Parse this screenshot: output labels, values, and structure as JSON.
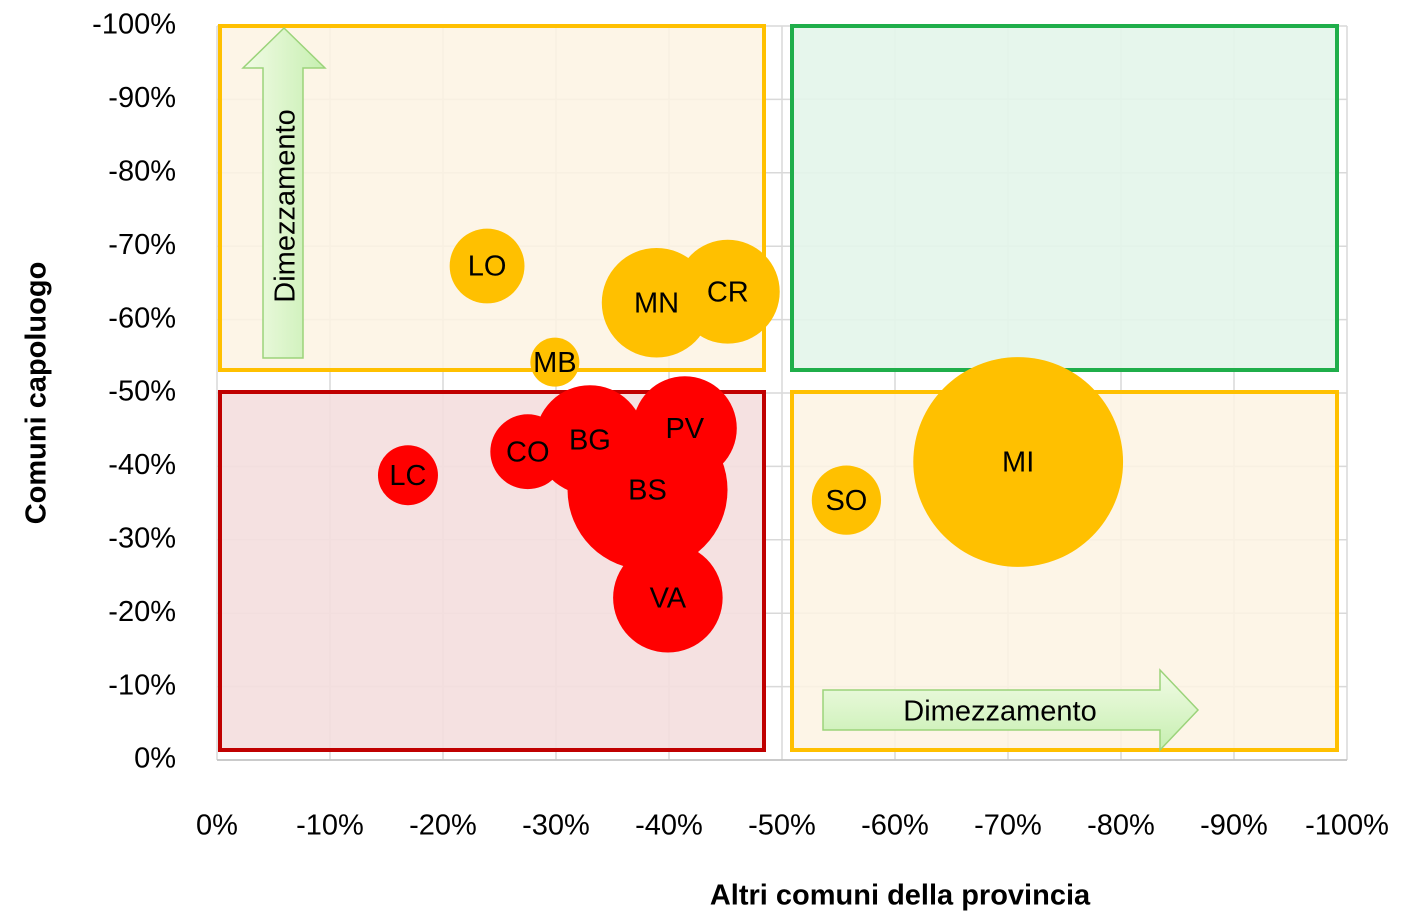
{
  "chart_data": {
    "type": "bubble",
    "xlabel": "Altri comuni della provincia",
    "ylabel": "Comuni capoluogo",
    "xlim": [
      0,
      -100
    ],
    "ylim": [
      0,
      -100
    ],
    "xticks": [
      {
        "value": 0,
        "label": "0%"
      },
      {
        "value": -10,
        "label": "-10%"
      },
      {
        "value": -20,
        "label": "-20%"
      },
      {
        "value": -30,
        "label": "-30%"
      },
      {
        "value": -40,
        "label": "-40%"
      },
      {
        "value": -50,
        "label": "-50%"
      },
      {
        "value": -60,
        "label": "-60%"
      },
      {
        "value": -70,
        "label": "-70%"
      },
      {
        "value": -80,
        "label": "-80%"
      },
      {
        "value": -90,
        "label": "-90%"
      },
      {
        "value": -100,
        "label": "-100%"
      }
    ],
    "yticks": [
      {
        "value": 0,
        "label": "0%"
      },
      {
        "value": -10,
        "label": "-10%"
      },
      {
        "value": -20,
        "label": "-20%"
      },
      {
        "value": -30,
        "label": "-30%"
      },
      {
        "value": -40,
        "label": "-40%"
      },
      {
        "value": -50,
        "label": "-50%"
      },
      {
        "value": -60,
        "label": "-60%"
      },
      {
        "value": -70,
        "label": "-70%"
      },
      {
        "value": -80,
        "label": "-80%"
      },
      {
        "value": -90,
        "label": "-90%"
      },
      {
        "value": -100,
        "label": "-100%"
      }
    ],
    "grid": true,
    "annotations": [
      "Dimezzamento",
      "Dimezzamento"
    ],
    "points": [
      {
        "label": "LO",
        "x": -23.9,
        "y": -67.3,
        "size": 14,
        "color": "#ffc000"
      },
      {
        "label": "MN",
        "x": -38.9,
        "y": -62.3,
        "size": 30,
        "color": "#ffc000"
      },
      {
        "label": "CR",
        "x": -45.2,
        "y": -63.8,
        "size": 27,
        "color": "#ffc000"
      },
      {
        "label": "MB",
        "x": -29.9,
        "y": -54.2,
        "size": 6,
        "color": "#ffc000"
      },
      {
        "label": "SO",
        "x": -55.7,
        "y": -35.4,
        "size": 12,
        "color": "#ffc000"
      },
      {
        "label": "MI",
        "x": -70.9,
        "y": -40.6,
        "size": 110,
        "color": "#ffc000"
      },
      {
        "label": "LC",
        "x": -16.9,
        "y": -38.8,
        "size": 9,
        "color": "#ff0000"
      },
      {
        "label": "CO",
        "x": -27.5,
        "y": -42,
        "size": 14,
        "color": "#ff0000"
      },
      {
        "label": "BG",
        "x": -33,
        "y": -43.6,
        "size": 30,
        "color": "#ff0000"
      },
      {
        "label": "PV",
        "x": -41.4,
        "y": -45.2,
        "size": 27,
        "color": "#ff0000"
      },
      {
        "label": "BS",
        "x": -38.1,
        "y": -36.8,
        "size": 64,
        "color": "#ff0000"
      },
      {
        "label": "VA",
        "x": -39.9,
        "y": -22.1,
        "size": 30,
        "color": "#ff0000"
      }
    ]
  }
}
